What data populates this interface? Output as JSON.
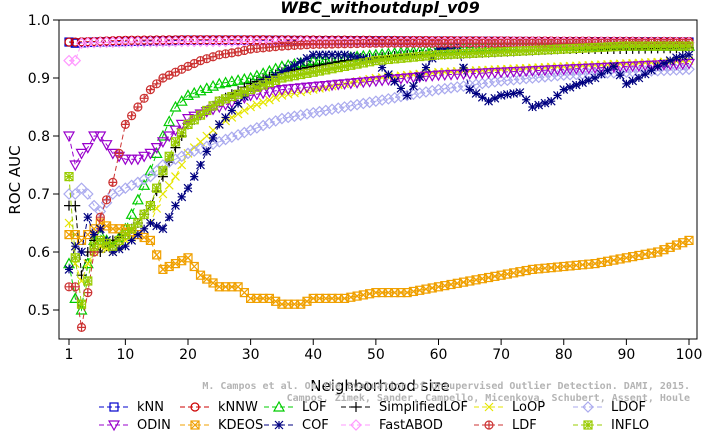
{
  "chart_data": {
    "type": "line",
    "title": "WBC_withoutdupl_v09",
    "xlabel": "Neighborhood size",
    "ylabel": "ROC AUC",
    "xlim": [
      1,
      100
    ],
    "ylim": [
      0.45,
      1.0
    ],
    "x_ticks": [
      1,
      10,
      20,
      30,
      40,
      50,
      60,
      70,
      80,
      90,
      100
    ],
    "y_ticks": [
      0.5,
      0.6,
      0.7,
      0.8,
      0.9,
      1.0
    ],
    "x_tick_labels": [
      "1",
      "10",
      "20",
      "30",
      "40",
      "50",
      "60",
      "70",
      "80",
      "90",
      "100"
    ],
    "y_tick_labels": [
      "0.5",
      "0.6",
      "0.7",
      "0.8",
      "0.9",
      "1.0"
    ],
    "grid": false,
    "legend_position": "bottom",
    "watermark": [
      "M. Campos et al. On the Evaluation of Unsupervised Outlier Detection. DAMI, 2015.",
      "Campos, Zimek, Sander, Campello, Micenkova, Schubert, Assent, Houle"
    ],
    "series": [
      {
        "name": "kNN",
        "color": "#0000cc",
        "marker": "square",
        "x": [
          1,
          2,
          5,
          10,
          20,
          30,
          50,
          70,
          100
        ],
        "y": [
          0.962,
          0.96,
          0.962,
          0.963,
          0.965,
          0.965,
          0.964,
          0.963,
          0.962
        ]
      },
      {
        "name": "kNNW",
        "color": "#cc0000",
        "marker": "circle",
        "x": [
          1,
          2,
          5,
          10,
          20,
          30,
          50,
          70,
          100
        ],
        "y": [
          0.962,
          0.962,
          0.963,
          0.965,
          0.966,
          0.966,
          0.965,
          0.964,
          0.963
        ]
      },
      {
        "name": "LOF",
        "color": "#00cc00",
        "marker": "triangle-up",
        "x": [
          1,
          2,
          3,
          4,
          5,
          6,
          8,
          10,
          12,
          14,
          16,
          18,
          20,
          25,
          30,
          35,
          40,
          45,
          50,
          55,
          60,
          70,
          80,
          90,
          100
        ],
        "y": [
          0.58,
          0.52,
          0.5,
          0.58,
          0.62,
          0.63,
          0.61,
          0.64,
          0.69,
          0.74,
          0.8,
          0.85,
          0.87,
          0.89,
          0.9,
          0.92,
          0.93,
          0.935,
          0.94,
          0.945,
          0.95,
          0.955,
          0.955,
          0.955,
          0.955
        ]
      },
      {
        "name": "SimplifiedLOF",
        "color": "#000000",
        "marker": "plus",
        "x": [
          1,
          2,
          3,
          4,
          5,
          6,
          8,
          10,
          12,
          14,
          16,
          18,
          20,
          25,
          30,
          35,
          40,
          45,
          50,
          55,
          60,
          70,
          80,
          90,
          100
        ],
        "y": [
          0.68,
          0.68,
          0.56,
          0.6,
          0.62,
          0.6,
          0.62,
          0.63,
          0.65,
          0.68,
          0.73,
          0.78,
          0.82,
          0.86,
          0.89,
          0.91,
          0.92,
          0.93,
          0.935,
          0.94,
          0.94,
          0.945,
          0.95,
          0.95,
          0.952
        ]
      },
      {
        "name": "LoOP",
        "color": "#e6e600",
        "marker": "x",
        "x": [
          1,
          2,
          3,
          4,
          5,
          6,
          8,
          10,
          12,
          14,
          16,
          18,
          20,
          25,
          30,
          35,
          40,
          45,
          50,
          55,
          60,
          70,
          80,
          90,
          100
        ],
        "y": [
          0.65,
          0.58,
          0.55,
          0.58,
          0.6,
          0.61,
          0.6,
          0.62,
          0.63,
          0.65,
          0.7,
          0.73,
          0.77,
          0.82,
          0.85,
          0.87,
          0.88,
          0.89,
          0.9,
          0.905,
          0.91,
          0.915,
          0.92,
          0.925,
          0.93
        ]
      },
      {
        "name": "LDOF",
        "color": "#aaaaee",
        "marker": "diamond",
        "x": [
          1,
          2,
          3,
          4,
          5,
          6,
          8,
          10,
          12,
          14,
          16,
          18,
          20,
          25,
          30,
          35,
          40,
          45,
          50,
          55,
          60,
          70,
          80,
          90,
          100
        ],
        "y": [
          0.7,
          0.7,
          0.71,
          0.7,
          0.68,
          0.67,
          0.7,
          0.71,
          0.72,
          0.73,
          0.75,
          0.76,
          0.77,
          0.79,
          0.81,
          0.83,
          0.84,
          0.85,
          0.86,
          0.87,
          0.88,
          0.895,
          0.905,
          0.91,
          0.915
        ]
      },
      {
        "name": "ODIN",
        "color": "#9900cc",
        "marker": "triangle-down",
        "x": [
          1,
          2,
          3,
          4,
          5,
          6,
          8,
          10,
          12,
          14,
          16,
          18,
          20,
          25,
          30,
          35,
          40,
          45,
          50,
          55,
          60,
          70,
          80,
          90,
          100
        ],
        "y": [
          0.8,
          0.75,
          0.77,
          0.78,
          0.8,
          0.8,
          0.77,
          0.76,
          0.76,
          0.77,
          0.79,
          0.81,
          0.83,
          0.85,
          0.87,
          0.88,
          0.885,
          0.89,
          0.895,
          0.9,
          0.905,
          0.91,
          0.915,
          0.92,
          0.925
        ]
      },
      {
        "name": "KDEOS",
        "color": "#f0a000",
        "marker": "square-x",
        "x": [
          1,
          2,
          3,
          4,
          5,
          6,
          8,
          10,
          12,
          14,
          16,
          18,
          20,
          22,
          25,
          28,
          30,
          33,
          35,
          38,
          40,
          45,
          50,
          55,
          60,
          65,
          70,
          75,
          80,
          85,
          90,
          95,
          100
        ],
        "y": [
          0.63,
          0.63,
          0.62,
          0.63,
          0.64,
          0.65,
          0.64,
          0.64,
          0.63,
          0.62,
          0.57,
          0.58,
          0.59,
          0.56,
          0.54,
          0.54,
          0.52,
          0.52,
          0.51,
          0.51,
          0.52,
          0.52,
          0.53,
          0.53,
          0.54,
          0.55,
          0.56,
          0.57,
          0.575,
          0.58,
          0.59,
          0.6,
          0.62
        ]
      },
      {
        "name": "COF",
        "color": "#000080",
        "marker": "asterisk",
        "x": [
          1,
          2,
          3,
          4,
          5,
          6,
          8,
          10,
          12,
          14,
          16,
          18,
          20,
          22,
          25,
          30,
          35,
          40,
          45,
          50,
          55,
          60,
          63,
          65,
          68,
          70,
          73,
          75,
          78,
          80,
          85,
          88,
          90,
          92,
          95,
          98,
          100
        ],
        "y": [
          0.57,
          0.61,
          0.6,
          0.66,
          0.63,
          0.64,
          0.6,
          0.61,
          0.63,
          0.65,
          0.64,
          0.68,
          0.71,
          0.75,
          0.82,
          0.88,
          0.91,
          0.94,
          0.94,
          0.93,
          0.87,
          0.95,
          0.955,
          0.88,
          0.86,
          0.87,
          0.875,
          0.85,
          0.86,
          0.88,
          0.9,
          0.92,
          0.89,
          0.9,
          0.92,
          0.935,
          0.94
        ]
      },
      {
        "name": "FastABOD",
        "color": "#ff99ff",
        "marker": "diamond",
        "x": [
          1,
          2,
          3,
          5,
          10,
          20,
          30,
          50,
          70,
          100
        ],
        "y": [
          0.93,
          0.93,
          0.96,
          0.961,
          0.962,
          0.963,
          0.963,
          0.962,
          0.962,
          0.961
        ]
      },
      {
        "name": "LDF",
        "color": "#cc3333",
        "marker": "circle-plus",
        "x": [
          1,
          2,
          3,
          4,
          5,
          6,
          7,
          8,
          10,
          12,
          14,
          16,
          18,
          20,
          22,
          25,
          28,
          30,
          35,
          40,
          50,
          60,
          70,
          80,
          90,
          100
        ],
        "y": [
          0.54,
          0.54,
          0.47,
          0.53,
          0.6,
          0.66,
          0.69,
          0.72,
          0.82,
          0.85,
          0.88,
          0.9,
          0.91,
          0.92,
          0.93,
          0.94,
          0.945,
          0.95,
          0.955,
          0.958,
          0.96,
          0.96,
          0.96,
          0.96,
          0.96,
          0.96
        ]
      },
      {
        "name": "INFLO",
        "color": "#99cc00",
        "marker": "square-star",
        "x": [
          1,
          2,
          3,
          4,
          5,
          6,
          8,
          10,
          12,
          14,
          16,
          18,
          20,
          25,
          30,
          35,
          40,
          45,
          50,
          55,
          60,
          70,
          80,
          90,
          100
        ],
        "y": [
          0.73,
          0.59,
          0.51,
          0.55,
          0.61,
          0.62,
          0.61,
          0.63,
          0.65,
          0.68,
          0.74,
          0.79,
          0.82,
          0.86,
          0.88,
          0.9,
          0.91,
          0.92,
          0.93,
          0.935,
          0.94,
          0.945,
          0.95,
          0.955,
          0.955
        ]
      }
    ],
    "legend_rows": [
      [
        "kNN",
        "kNNW",
        "LOF",
        "SimplifiedLOF",
        "LoOP",
        "LDOF"
      ],
      [
        "ODIN",
        "KDEOS",
        "COF",
        "FastABOD",
        "LDF",
        "INFLO"
      ]
    ]
  }
}
